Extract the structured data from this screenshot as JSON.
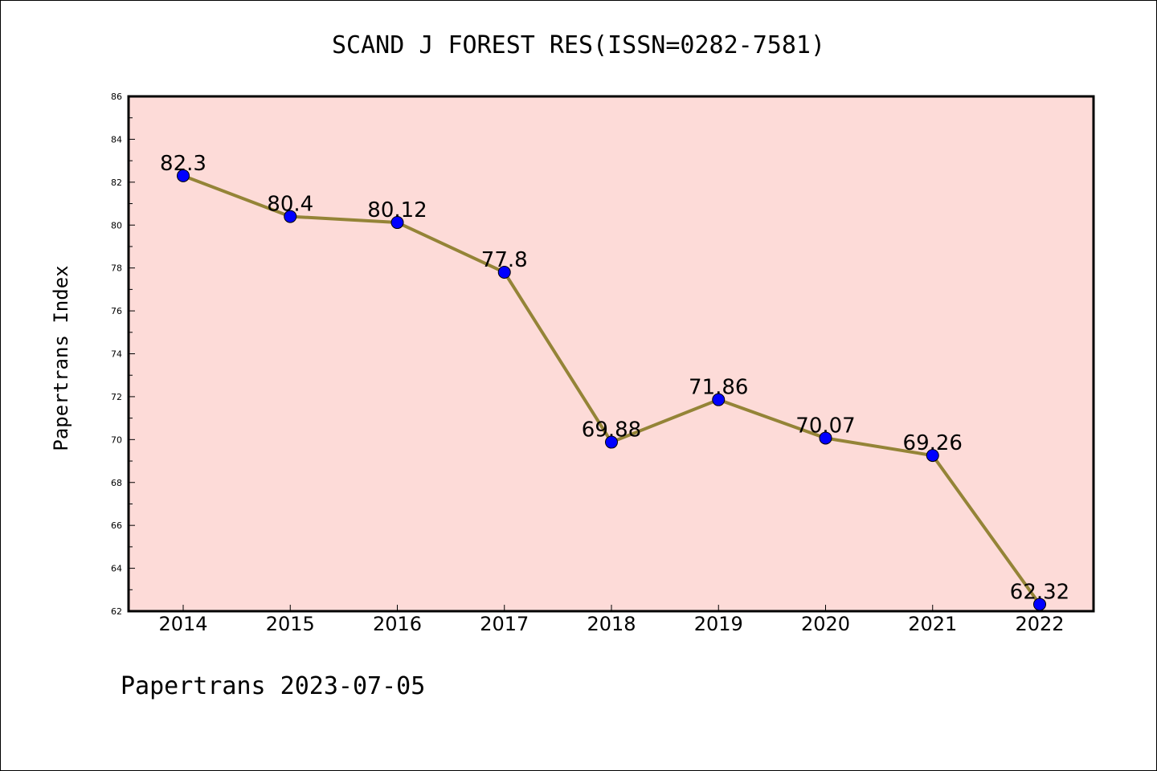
{
  "chart_data": {
    "type": "line",
    "title": "SCAND J FOREST RES(ISSN=0282-7581)",
    "ylabel": "Papertrans Index",
    "xlabel": "",
    "footer": "Papertrans 2023-07-05",
    "categories": [
      "2014",
      "2015",
      "2016",
      "2017",
      "2018",
      "2019",
      "2020",
      "2021",
      "2022"
    ],
    "values": [
      82.3,
      80.4,
      80.12,
      77.8,
      69.88,
      71.86,
      70.07,
      69.26,
      62.32
    ],
    "data_labels": [
      "82.3",
      "80.4",
      "80.12",
      "77.8",
      "69.88",
      "71.86",
      "70.07",
      "69.26",
      "62.32"
    ],
    "ylim": [
      62,
      86
    ],
    "yticks": [
      62,
      64,
      66,
      68,
      70,
      72,
      74,
      76,
      78,
      80,
      82,
      84,
      86
    ],
    "grid": false,
    "legend": "none",
    "colors": {
      "plot_background": "#fddbd8",
      "line": "#948437",
      "marker": "#0000ff",
      "marker_edge": "#000000",
      "axis": "#000000"
    }
  }
}
